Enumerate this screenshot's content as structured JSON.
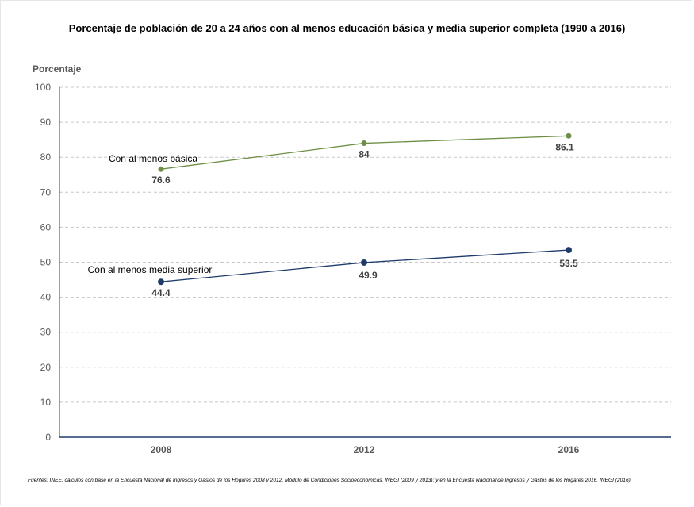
{
  "chart_data": {
    "type": "line",
    "title": "Porcentaje de población de 20 a 24 años con al menos educación básica y media superior completa (1990 a 2016)",
    "ylabel": "Porcentaje",
    "xlabel": "",
    "categories": [
      "2008",
      "2012",
      "2016"
    ],
    "ylim": [
      0,
      100
    ],
    "yticks": [
      "0",
      "10",
      "20",
      "30",
      "40",
      "50",
      "60",
      "70",
      "80",
      "90",
      "100"
    ],
    "grid": true,
    "series": [
      {
        "name": "Con al menos básica",
        "values": [
          76.6,
          84,
          86.1
        ],
        "labels": [
          "76.6",
          "84",
          "86.1"
        ],
        "color": "#6d8f45"
      },
      {
        "name": "Con al menos media superior",
        "values": [
          44.4,
          49.9,
          53.5
        ],
        "labels": [
          "44.4",
          "49.9",
          "53.5"
        ],
        "color": "#1f3b6b"
      }
    ]
  },
  "source": "Fuentes: INEE, cálculos con base en la Encuesta Nacional de Ingresos y Gastos de los Hogares 2008 y 2012, Módulo de Condiciones Socioeconómicas, INEGI (2009 y 2013); y en la Encuesta Nacional de Ingresos y Gastos de los Hogares 2016, INEGI (2016)."
}
